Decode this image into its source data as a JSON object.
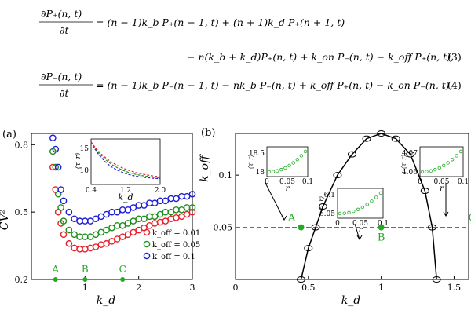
{
  "equations": {
    "eq3": {
      "lhs_num": "∂P₊(n, t)",
      "lhs_den": "∂t",
      "line1": "= (n − 1)k_b P₊(n − 1, t) + (n + 1)k_d P₊(n + 1, t)",
      "line2": "− n(k_b + k_d)P₊(n, t) + k_on P₋(n, t) − k_off P₊(n, t),",
      "number": "(3)"
    },
    "eq4": {
      "lhs_num": "∂P₋(n, t)",
      "lhs_den": "∂t",
      "line1": "= (n − 1)k_b P₋(n − 1, t) − nk_b P₋(n, t) + k_off P₊(n, t) − k_on P₋(n, t).",
      "number": "(4)"
    }
  },
  "panel_a": {
    "label": "(a)",
    "ylabel": "CV²",
    "xlabel": "k_d",
    "yticks": [
      "0.2",
      "0.5",
      "0.8"
    ],
    "xticks": [
      "1",
      "2",
      "3"
    ],
    "point_labels": [
      "A",
      "B",
      "C"
    ],
    "legend": [
      "k_off = 0.01",
      "k_off = 0.05",
      "k_off = 0.1"
    ],
    "inset": {
      "ylabel": "⟨τ_r⟩",
      "xlabel": "k_d",
      "yticks": [
        "10",
        "15"
      ],
      "xticks": [
        "0.4",
        "1.2",
        "2.0"
      ]
    }
  },
  "panel_b": {
    "label": "(b)",
    "ylabel": "k_off",
    "xlabel": "k_d",
    "yticks": [
      "0.05",
      "0.1"
    ],
    "xticks": [
      "0",
      "0.5",
      "1",
      "1.5"
    ],
    "point_labels": [
      "A",
      "B",
      "C"
    ],
    "insets": [
      {
        "ylabel": "⟨τ_r⟩",
        "xlabel": "r",
        "yticks": [
          "18",
          "18.5"
        ],
        "xticks": [
          "0",
          "0.05",
          "0.1"
        ]
      },
      {
        "ylabel": "⟨τ_r⟩",
        "xlabel": "r",
        "yticks": [
          "6.05",
          "6.1"
        ],
        "xticks": [
          "0",
          "0.05",
          "0.1"
        ]
      },
      {
        "ylabel": "⟨τ_r⟩",
        "xlabel": "r",
        "yticks": [
          "4.06",
          "4.07"
        ],
        "xticks": [
          "0",
          "0.05",
          "0.1"
        ]
      }
    ]
  },
  "colors": {
    "red": "#e8202a",
    "green": "#1e8f1e",
    "blue": "#1d1dd6",
    "orange": "#e08020",
    "purple": "#b43cb4",
    "pt_green": "#22aa22"
  },
  "chart_data": [
    {
      "type": "scatter",
      "title": "",
      "xlabel": "k_d",
      "ylabel": "CV²",
      "xlim": [
        0,
        3
      ],
      "ylim": [
        0.2,
        0.85
      ],
      "series": [
        {
          "name": "k_off = 0.01",
          "x": [
            0.4,
            0.45,
            0.5,
            0.55,
            0.6,
            0.7,
            0.8,
            0.9,
            1.0,
            1.1,
            1.2,
            1.3,
            1.4,
            1.5,
            1.6,
            1.7,
            1.8,
            1.9,
            2.0,
            2.1,
            2.2,
            2.3,
            2.4,
            2.5,
            2.6,
            2.7,
            2.8,
            2.9,
            3.0
          ],
          "y": [
            0.7,
            0.6,
            0.5,
            0.45,
            0.4,
            0.36,
            0.34,
            0.335,
            0.335,
            0.34,
            0.345,
            0.355,
            0.36,
            0.37,
            0.38,
            0.39,
            0.4,
            0.41,
            0.42,
            0.43,
            0.44,
            0.45,
            0.455,
            0.46,
            0.47,
            0.475,
            0.48,
            0.49,
            0.5
          ]
        },
        {
          "name": "k_off = 0.05",
          "x": [
            0.4,
            0.45,
            0.5,
            0.55,
            0.6,
            0.7,
            0.8,
            0.9,
            1.0,
            1.1,
            1.2,
            1.3,
            1.4,
            1.5,
            1.6,
            1.7,
            1.8,
            1.9,
            2.0,
            2.1,
            2.2,
            2.3,
            2.4,
            2.5,
            2.6,
            2.7,
            2.8,
            2.9,
            3.0
          ],
          "y": [
            0.77,
            0.7,
            0.58,
            0.52,
            0.46,
            0.42,
            0.4,
            0.39,
            0.39,
            0.39,
            0.4,
            0.41,
            0.42,
            0.43,
            0.44,
            0.44,
            0.45,
            0.46,
            0.47,
            0.47,
            0.48,
            0.48,
            0.49,
            0.5,
            0.5,
            0.51,
            0.51,
            0.52,
            0.52
          ]
        },
        {
          "name": "k_off = 0.1",
          "x": [
            0.4,
            0.45,
            0.5,
            0.55,
            0.6,
            0.7,
            0.8,
            0.9,
            1.0,
            1.1,
            1.2,
            1.3,
            1.4,
            1.5,
            1.6,
            1.7,
            1.8,
            1.9,
            2.0,
            2.1,
            2.2,
            2.3,
            2.4,
            2.5,
            2.6,
            2.7,
            2.8,
            2.9,
            3.0
          ],
          "y": [
            0.83,
            0.78,
            0.7,
            0.6,
            0.55,
            0.5,
            0.47,
            0.46,
            0.46,
            0.46,
            0.47,
            0.48,
            0.49,
            0.5,
            0.5,
            0.51,
            0.51,
            0.52,
            0.53,
            0.53,
            0.54,
            0.54,
            0.55,
            0.55,
            0.56,
            0.56,
            0.57,
            0.57,
            0.58
          ]
        }
      ],
      "points": [
        {
          "label": "A",
          "x": 0.45
        },
        {
          "label": "B",
          "x": 1.0
        },
        {
          "label": "C",
          "x": 1.7
        }
      ]
    },
    {
      "type": "line",
      "xlabel": "k_d",
      "ylabel": "k_off",
      "xlim": [
        0,
        1.6
      ],
      "ylim": [
        0,
        0.14
      ],
      "series": [
        {
          "x": [
            0.45,
            0.5,
            0.55,
            0.6,
            0.7,
            0.8,
            0.9,
            1.0,
            1.1,
            1.2,
            1.3,
            1.35,
            1.38
          ],
          "y": [
            0.0,
            0.03,
            0.05,
            0.07,
            0.1,
            0.12,
            0.135,
            0.14,
            0.135,
            0.12,
            0.085,
            0.05,
            0.0
          ]
        }
      ],
      "hline": 0.05,
      "points": [
        {
          "label": "A",
          "x": 0.45,
          "y": 0.05
        },
        {
          "label": "B",
          "x": 1.0,
          "y": 0.05
        },
        {
          "label": "C",
          "x": 1.7,
          "y": 0.05
        }
      ]
    }
  ]
}
